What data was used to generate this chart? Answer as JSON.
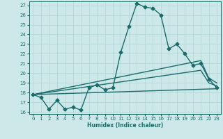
{
  "background_color": "#cce8e8",
  "grid_color": "#b0d4d4",
  "line_color": "#1a6b6b",
  "xlabel": "Humidex (Indice chaleur)",
  "xlim": [
    -0.5,
    23.5
  ],
  "ylim": [
    15.8,
    27.4
  ],
  "xticks": [
    0,
    1,
    2,
    3,
    4,
    5,
    6,
    7,
    8,
    9,
    10,
    11,
    12,
    13,
    14,
    15,
    16,
    17,
    18,
    19,
    20,
    21,
    22,
    23
  ],
  "yticks": [
    16,
    17,
    18,
    19,
    20,
    21,
    22,
    23,
    24,
    25,
    26,
    27
  ],
  "curve1_x": [
    0,
    1,
    2,
    3,
    4,
    5,
    6,
    7,
    8,
    9,
    10,
    11,
    12,
    13,
    14,
    15,
    16,
    17,
    18,
    19,
    20,
    21,
    22,
    23
  ],
  "curve1_y": [
    17.8,
    17.5,
    16.3,
    17.2,
    16.3,
    16.5,
    16.2,
    18.5,
    18.8,
    18.3,
    18.5,
    22.2,
    24.8,
    27.2,
    26.8,
    26.7,
    26.0,
    22.5,
    23.0,
    22.0,
    20.8,
    21.0,
    19.4,
    18.5
  ],
  "curve2_x": [
    0,
    21,
    22,
    23
  ],
  "curve2_y": [
    17.8,
    21.3,
    19.5,
    19.0
  ],
  "curve3_x": [
    0,
    21,
    22,
    23
  ],
  "curve3_y": [
    17.8,
    20.3,
    19.0,
    18.7
  ],
  "curve4_x": [
    0,
    23
  ],
  "curve4_y": [
    17.8,
    18.4
  ],
  "marker": "D",
  "marker_size": 2.5,
  "linewidth": 1.0
}
